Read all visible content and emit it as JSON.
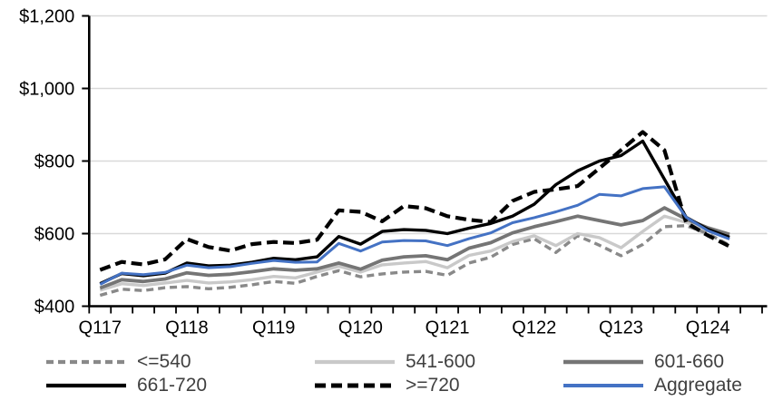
{
  "figure": {
    "background": "#FFFFFF",
    "title": ""
  },
  "chart_data": {
    "type": "line",
    "title": "",
    "xlabel": "",
    "ylabel": "",
    "x": [
      "2017Q1",
      "2017Q2",
      "2017Q3",
      "2017Q4",
      "2018Q1",
      "2018Q2",
      "2018Q3",
      "2018Q4",
      "2019Q1",
      "2019Q2",
      "2019Q3",
      "2019Q4",
      "2020Q1",
      "2020Q2",
      "2020Q3",
      "2020Q4",
      "2021Q1",
      "2021Q2",
      "2021Q3",
      "2021Q4",
      "2022Q1",
      "2022Q2",
      "2022Q3",
      "2022Q4",
      "2023Q1",
      "2023Q2",
      "2023Q3",
      "2023Q4",
      "2024Q1",
      "2024Q2"
    ],
    "x_year_labels": [
      "Q117",
      "Q118",
      "Q119",
      "Q120",
      "Q121",
      "Q122",
      "Q123",
      "Q124"
    ],
    "x_total_intervals": 31,
    "ylim": [
      400,
      1200
    ],
    "y_ticks": [
      {
        "value": 400,
        "label": "$400"
      },
      {
        "value": 600,
        "label": "$600"
      },
      {
        "value": 800,
        "label": "$800"
      },
      {
        "value": 1000,
        "label": "$1,000"
      },
      {
        "value": 1200,
        "label": "$1,200"
      }
    ],
    "grid": "horizontal",
    "gridline_color": "#D9D9D9",
    "axis_color": "#000000",
    "axis_text_color": "#000000",
    "legend_position": "bottom",
    "legend_text_color": "#404040",
    "series": [
      {
        "name": "<=540",
        "color": "#898989",
        "dash": "8 5",
        "width": 3.4,
        "values": [
          430,
          447,
          443,
          451,
          454,
          448,
          452,
          459,
          468,
          463,
          482,
          498,
          481,
          489,
          494,
          496,
          485,
          519,
          535,
          570,
          586,
          548,
          594,
          568,
          539,
          570,
          619,
          622,
          600,
          568
        ]
      },
      {
        "name": "541-600",
        "color": "#C9C9C9",
        "dash": null,
        "width": 3.4,
        "values": [
          444,
          462,
          457,
          464,
          471,
          464,
          467,
          473,
          482,
          478,
          494,
          510,
          494,
          514,
          519,
          523,
          506,
          540,
          552,
          578,
          594,
          567,
          600,
          589,
          561,
          606,
          648,
          631,
          610,
          588
        ]
      },
      {
        "name": "601-660",
        "color": "#757575",
        "dash": null,
        "width": 3.8,
        "values": [
          450,
          473,
          468,
          475,
          492,
          485,
          488,
          495,
          503,
          499,
          503,
          519,
          502,
          527,
          536,
          539,
          528,
          560,
          575,
          602,
          619,
          633,
          648,
          636,
          624,
          636,
          671,
          640,
          616,
          598
        ]
      },
      {
        "name": "661-720",
        "color": "#000000",
        "dash": null,
        "width": 3.4,
        "values": [
          462,
          490,
          484,
          491,
          519,
          511,
          513,
          521,
          532,
          528,
          536,
          592,
          571,
          606,
          611,
          609,
          600,
          615,
          628,
          648,
          681,
          735,
          773,
          800,
          815,
          855,
          750,
          645,
          612,
          590
        ]
      },
      {
        "name": ">=720",
        "color": "#000000",
        "dash": "12 6",
        "width": 4.2,
        "values": [
          500,
          522,
          515,
          529,
          585,
          563,
          553,
          571,
          577,
          574,
          583,
          664,
          660,
          634,
          676,
          670,
          648,
          638,
          632,
          690,
          715,
          722,
          731,
          780,
          830,
          880,
          830,
          630,
          595,
          565
        ]
      },
      {
        "name": "Aggregate",
        "color": "#4472C4",
        "dash": null,
        "width": 3.0,
        "values": [
          460,
          491,
          487,
          493,
          513,
          506,
          509,
          518,
          526,
          521,
          522,
          573,
          552,
          577,
          581,
          580,
          567,
          586,
          602,
          630,
          644,
          660,
          678,
          708,
          704,
          724,
          729,
          645,
          608,
          585
        ]
      }
    ]
  }
}
